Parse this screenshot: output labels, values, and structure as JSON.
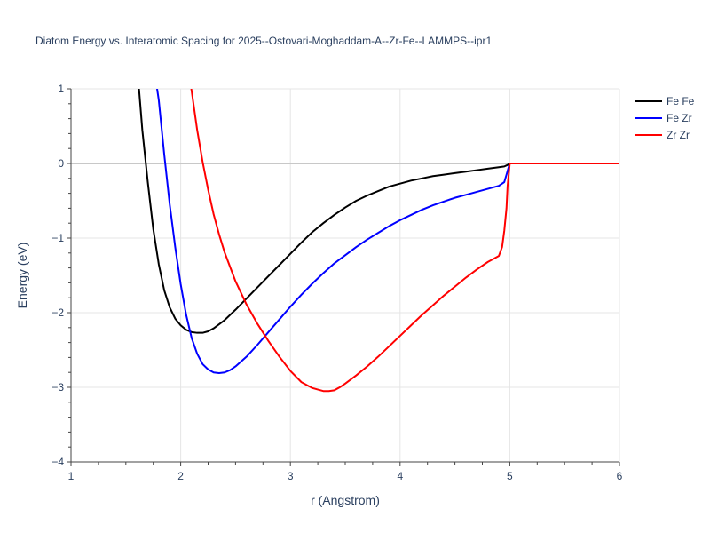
{
  "chart_data": {
    "type": "line",
    "title": "Diatom Energy vs. Interatomic Spacing for 2025--Ostovari-Moghaddam-A--Zr-Fe--LAMMPS--ipr1",
    "xlabel": "r (Angstrom)",
    "ylabel": "Energy (eV)",
    "xlim": [
      1,
      6
    ],
    "ylim": [
      -4,
      1
    ],
    "xticks": [
      1,
      2,
      3,
      4,
      5,
      6
    ],
    "yticks": [
      1,
      0,
      -1,
      -2,
      -3,
      -4
    ],
    "xtick_labels": [
      "1",
      "2",
      "3",
      "4",
      "5",
      "6"
    ],
    "ytick_labels": [
      "1",
      "0",
      "−1",
      "−2",
      "−3",
      "−4"
    ],
    "grid": true,
    "legend_position": "top-right",
    "series": [
      {
        "name": "Fe Fe",
        "color": "#000000",
        "x": [
          1.5,
          1.6,
          1.62,
          1.65,
          1.7,
          1.75,
          1.8,
          1.85,
          1.9,
          1.95,
          2.0,
          2.05,
          2.1,
          2.15,
          2.2,
          2.25,
          2.3,
          2.4,
          2.5,
          2.6,
          2.7,
          2.8,
          2.9,
          3.0,
          3.1,
          3.2,
          3.3,
          3.4,
          3.5,
          3.6,
          3.7,
          3.8,
          3.9,
          4.0,
          4.1,
          4.2,
          4.3,
          4.4,
          4.5,
          4.6,
          4.7,
          4.8,
          4.9,
          4.95,
          4.98,
          5.0,
          5.5,
          6.0
        ],
        "y": [
          3.0,
          1.3,
          1.0,
          0.45,
          -0.25,
          -0.88,
          -1.35,
          -1.7,
          -1.93,
          -2.08,
          -2.17,
          -2.23,
          -2.26,
          -2.27,
          -2.27,
          -2.25,
          -2.21,
          -2.1,
          -1.96,
          -1.81,
          -1.66,
          -1.51,
          -1.36,
          -1.21,
          -1.06,
          -0.92,
          -0.8,
          -0.69,
          -0.59,
          -0.5,
          -0.43,
          -0.37,
          -0.31,
          -0.27,
          -0.23,
          -0.2,
          -0.17,
          -0.15,
          -0.13,
          -0.11,
          -0.09,
          -0.07,
          -0.05,
          -0.04,
          -0.02,
          0.0,
          0.0,
          0.0
        ]
      },
      {
        "name": "Fe Zr",
        "color": "#0000ff",
        "x": [
          1.7,
          1.78,
          1.8,
          1.85,
          1.9,
          1.95,
          2.0,
          2.05,
          2.1,
          2.15,
          2.2,
          2.25,
          2.3,
          2.35,
          2.4,
          2.45,
          2.5,
          2.6,
          2.7,
          2.8,
          2.9,
          3.0,
          3.1,
          3.2,
          3.3,
          3.4,
          3.5,
          3.6,
          3.7,
          3.8,
          3.9,
          4.0,
          4.1,
          4.2,
          4.3,
          4.4,
          4.5,
          4.6,
          4.7,
          4.8,
          4.9,
          4.95,
          4.97,
          4.99,
          5.0,
          5.5,
          6.0
        ],
        "y": [
          2.5,
          1.05,
          0.85,
          0.12,
          -0.55,
          -1.12,
          -1.62,
          -2.03,
          -2.34,
          -2.55,
          -2.69,
          -2.76,
          -2.8,
          -2.81,
          -2.8,
          -2.77,
          -2.72,
          -2.59,
          -2.43,
          -2.26,
          -2.09,
          -1.92,
          -1.76,
          -1.61,
          -1.47,
          -1.34,
          -1.23,
          -1.12,
          -1.02,
          -0.93,
          -0.84,
          -0.76,
          -0.69,
          -0.62,
          -0.56,
          -0.51,
          -0.46,
          -0.42,
          -0.38,
          -0.34,
          -0.3,
          -0.25,
          -0.15,
          -0.05,
          0.0,
          0.0,
          0.0
        ]
      },
      {
        "name": "Zr Zr",
        "color": "#ff0000",
        "x": [
          2.0,
          2.08,
          2.1,
          2.15,
          2.2,
          2.25,
          2.3,
          2.35,
          2.4,
          2.5,
          2.6,
          2.7,
          2.8,
          2.9,
          3.0,
          3.1,
          3.2,
          3.3,
          3.35,
          3.4,
          3.45,
          3.5,
          3.6,
          3.7,
          3.8,
          3.9,
          4.0,
          4.1,
          4.2,
          4.3,
          4.4,
          4.5,
          4.6,
          4.7,
          4.8,
          4.9,
          4.93,
          4.95,
          4.97,
          4.98,
          5.0,
          5.5,
          6.0
        ],
        "y": [
          1.8,
          1.15,
          0.97,
          0.45,
          0.02,
          -0.35,
          -0.68,
          -0.95,
          -1.19,
          -1.58,
          -1.89,
          -2.15,
          -2.38,
          -2.59,
          -2.78,
          -2.93,
          -3.01,
          -3.05,
          -3.05,
          -3.04,
          -3.0,
          -2.95,
          -2.84,
          -2.72,
          -2.59,
          -2.45,
          -2.31,
          -2.17,
          -2.03,
          -1.9,
          -1.77,
          -1.65,
          -1.53,
          -1.42,
          -1.32,
          -1.24,
          -1.12,
          -0.9,
          -0.6,
          -0.3,
          0.0,
          0.0,
          0.0
        ]
      }
    ]
  }
}
